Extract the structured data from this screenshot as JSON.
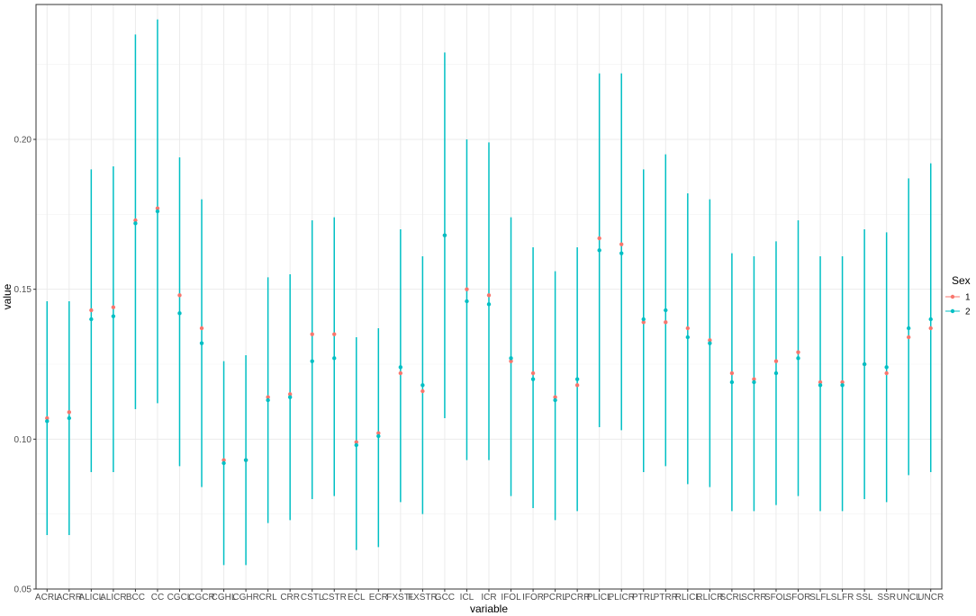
{
  "chart_data": {
    "type": "scatter",
    "xlabel": "variable",
    "ylabel": "value",
    "ylim": [
      0.05,
      0.245
    ],
    "y_ticks": [
      "0.05",
      "0.10",
      "0.15",
      "0.20"
    ],
    "y_tick_values": [
      0.05,
      0.1,
      0.15,
      0.2
    ],
    "grid": true,
    "legend_title": "Sex",
    "legend_position": "right",
    "categories": [
      "ACRL",
      "ACRR",
      "ALICL",
      "ALICR",
      "BCC",
      "CC",
      "CGCL",
      "CGCR",
      "CGHL",
      "CGHR",
      "CRL",
      "CRR",
      "CSTL",
      "CSTR",
      "ECL",
      "ECR",
      "FXSTL",
      "FXSTR",
      "GCC",
      "ICL",
      "ICR",
      "IFOL",
      "IFOR",
      "PCRL",
      "PCRR",
      "PLICL",
      "PLICR",
      "PTRL",
      "PTRR",
      "RLICL",
      "RLICR",
      "SCRL",
      "SCRR",
      "SFOL",
      "SFOR",
      "SLFL",
      "SLFR",
      "SSL",
      "SSR",
      "UNCL",
      "UNCR"
    ],
    "series": [
      {
        "name": "1",
        "color": "#F8766D",
        "values": [
          0.107,
          0.109,
          0.143,
          0.144,
          0.173,
          0.177,
          0.148,
          0.137,
          0.093,
          0.093,
          0.114,
          0.115,
          0.135,
          0.135,
          0.099,
          0.102,
          0.122,
          0.116,
          0.168,
          0.15,
          0.148,
          0.126,
          0.122,
          0.114,
          0.118,
          0.167,
          0.165,
          0.139,
          0.139,
          0.137,
          0.133,
          0.122,
          0.12,
          0.126,
          0.129,
          0.119,
          0.119,
          0.125,
          0.122,
          0.134,
          0.137
        ]
      },
      {
        "name": "2",
        "color": "#00BFC4",
        "values": [
          0.106,
          0.107,
          0.14,
          0.141,
          0.172,
          0.176,
          0.142,
          0.132,
          0.092,
          0.093,
          0.113,
          0.114,
          0.126,
          0.127,
          0.098,
          0.101,
          0.124,
          0.118,
          0.168,
          0.146,
          0.145,
          0.127,
          0.12,
          0.113,
          0.12,
          0.163,
          0.162,
          0.14,
          0.143,
          0.134,
          0.132,
          0.119,
          0.119,
          0.122,
          0.127,
          0.118,
          0.118,
          0.125,
          0.124,
          0.137,
          0.14
        ],
        "error_low": [
          0.068,
          0.068,
          0.089,
          0.089,
          0.11,
          0.112,
          0.091,
          0.084,
          0.058,
          0.058,
          0.072,
          0.073,
          0.08,
          0.081,
          0.063,
          0.064,
          0.079,
          0.075,
          0.107,
          0.093,
          0.093,
          0.081,
          0.077,
          0.073,
          0.076,
          0.104,
          0.103,
          0.089,
          0.091,
          0.085,
          0.084,
          0.076,
          0.076,
          0.078,
          0.081,
          0.076,
          0.076,
          0.08,
          0.079,
          0.088,
          0.089
        ],
        "error_high": [
          0.146,
          0.146,
          0.19,
          0.191,
          0.235,
          0.24,
          0.194,
          0.18,
          0.126,
          0.128,
          0.154,
          0.155,
          0.173,
          0.174,
          0.134,
          0.137,
          0.17,
          0.161,
          0.229,
          0.2,
          0.199,
          0.174,
          0.164,
          0.156,
          0.164,
          0.222,
          0.222,
          0.19,
          0.195,
          0.182,
          0.18,
          0.162,
          0.161,
          0.166,
          0.173,
          0.161,
          0.161,
          0.17,
          0.169,
          0.187,
          0.192
        ]
      }
    ]
  }
}
